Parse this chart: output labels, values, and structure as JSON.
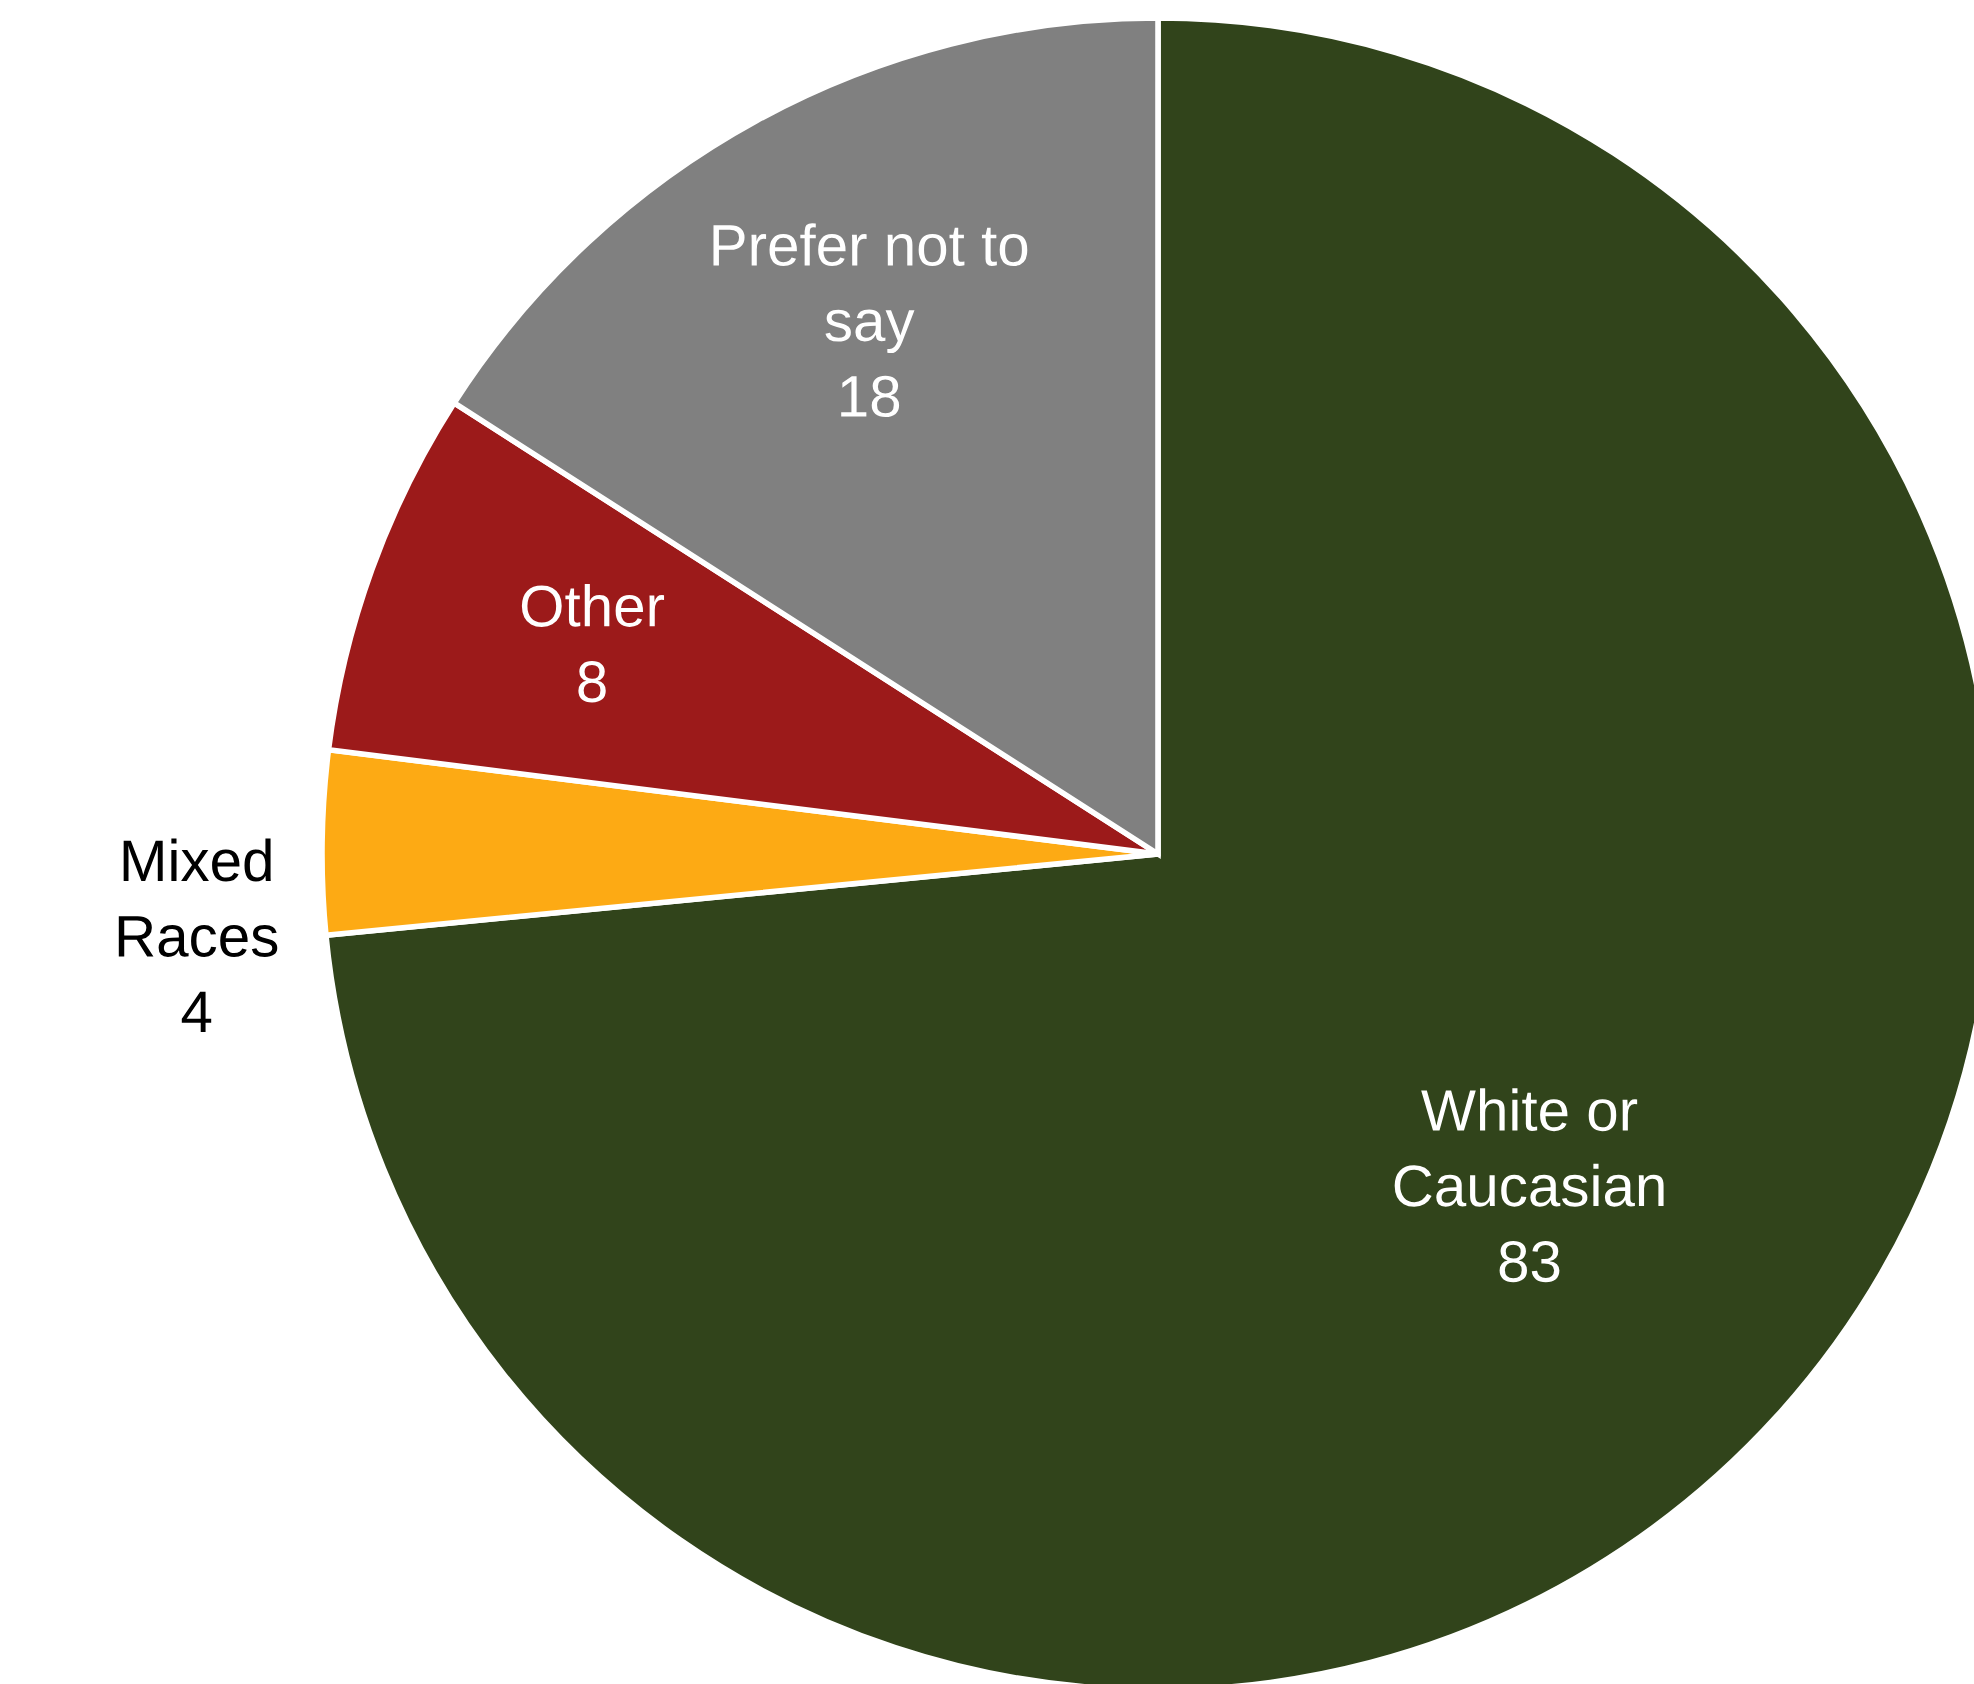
{
  "chart_data": {
    "type": "pie",
    "categories": [
      "White or\nCaucasian",
      "Mixed\nRaces",
      "Other",
      "Prefer not to\nsay"
    ],
    "values": [
      83,
      4,
      8,
      18
    ],
    "colors": [
      "#31441b",
      "#fdaa14",
      "#9c1a1a",
      "#808080"
    ],
    "data_labels": true
  }
}
